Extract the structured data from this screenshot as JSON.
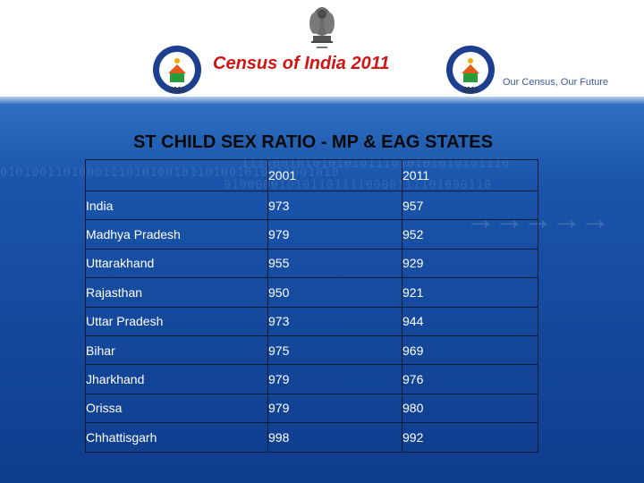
{
  "header": {
    "title": "Census of India  2011",
    "tagline": "Our Census,  Our Future",
    "logo_year": "2011",
    "emblem_caption": "सत्यमेव जयते"
  },
  "slide": {
    "title": "ST CHILD SEX RATIO - MP & EAG STATES"
  },
  "table": {
    "columns": [
      "",
      "2001",
      "2011"
    ],
    "rows": [
      {
        "name": "India",
        "y2001": "973",
        "y2011": "957"
      },
      {
        "name": "Madhya Pradesh",
        "y2001": "979",
        "y2011": "952"
      },
      {
        "name": "Uttarakhand",
        "y2001": "955",
        "y2011": "929"
      },
      {
        "name": "Rajasthan",
        "y2001": "950",
        "y2011": "921"
      },
      {
        "name": "Uttar Pradesh",
        "y2001": "973",
        "y2011": "944"
      },
      {
        "name": "Bihar",
        "y2001": "975",
        "y2011": "969"
      },
      {
        "name": "Jharkhand",
        "y2001": "979",
        "y2011": "976"
      },
      {
        "name": "Orissa",
        "y2001": "979",
        "y2011": "980"
      },
      {
        "name": "Chhattisgarh",
        "y2001": "998",
        "y2011": "992"
      }
    ]
  },
  "colors": {
    "title_red": "#d11414",
    "background_blue": "#1a55ab",
    "table_text": "#ffffff"
  }
}
